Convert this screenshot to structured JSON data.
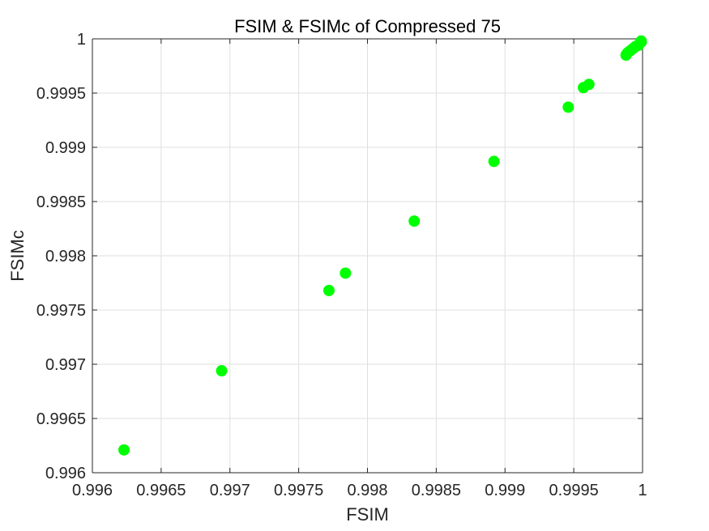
{
  "chart_data": {
    "type": "scatter",
    "title": "FSIM & FSIMc of Compressed 75",
    "xlabel": "FSIM",
    "ylabel": "FSIMc",
    "xlim": [
      0.996,
      1.0
    ],
    "ylim": [
      0.996,
      1.0
    ],
    "x_ticks": [
      0.996,
      0.9965,
      0.997,
      0.9975,
      0.998,
      0.9985,
      0.999,
      0.9995,
      1.0
    ],
    "x_tick_labels": [
      "0.996",
      "0.9965",
      "0.997",
      "0.9975",
      "0.998",
      "0.9985",
      "0.999",
      "0.9995",
      "1"
    ],
    "y_ticks": [
      0.996,
      0.9965,
      0.997,
      0.9975,
      0.998,
      0.9985,
      0.999,
      0.9995,
      1.0
    ],
    "y_tick_labels": [
      "0.996",
      "0.9965",
      "0.997",
      "0.9975",
      "0.998",
      "0.9985",
      "0.999",
      "0.9995",
      "1"
    ],
    "grid": true,
    "marker_color": "#00ff00",
    "points": [
      {
        "x": 0.99623,
        "y": 0.99621
      },
      {
        "x": 0.99694,
        "y": 0.99694
      },
      {
        "x": 0.99772,
        "y": 0.99768
      },
      {
        "x": 0.99784,
        "y": 0.99784
      },
      {
        "x": 0.99834,
        "y": 0.99832
      },
      {
        "x": 0.99892,
        "y": 0.99887
      },
      {
        "x": 0.99946,
        "y": 0.99937
      },
      {
        "x": 0.99957,
        "y": 0.99955
      },
      {
        "x": 0.99961,
        "y": 0.99958
      },
      {
        "x": 0.99988,
        "y": 0.99985
      },
      {
        "x": 0.99989,
        "y": 0.99987
      },
      {
        "x": 0.99991,
        "y": 0.99989
      },
      {
        "x": 0.99993,
        "y": 0.99991
      },
      {
        "x": 0.99995,
        "y": 0.99993
      },
      {
        "x": 0.99997,
        "y": 0.99994
      },
      {
        "x": 0.99998,
        "y": 0.99996
      },
      {
        "x": 0.99999,
        "y": 0.99997
      },
      {
        "x": 0.99999,
        "y": 0.99998
      }
    ]
  }
}
